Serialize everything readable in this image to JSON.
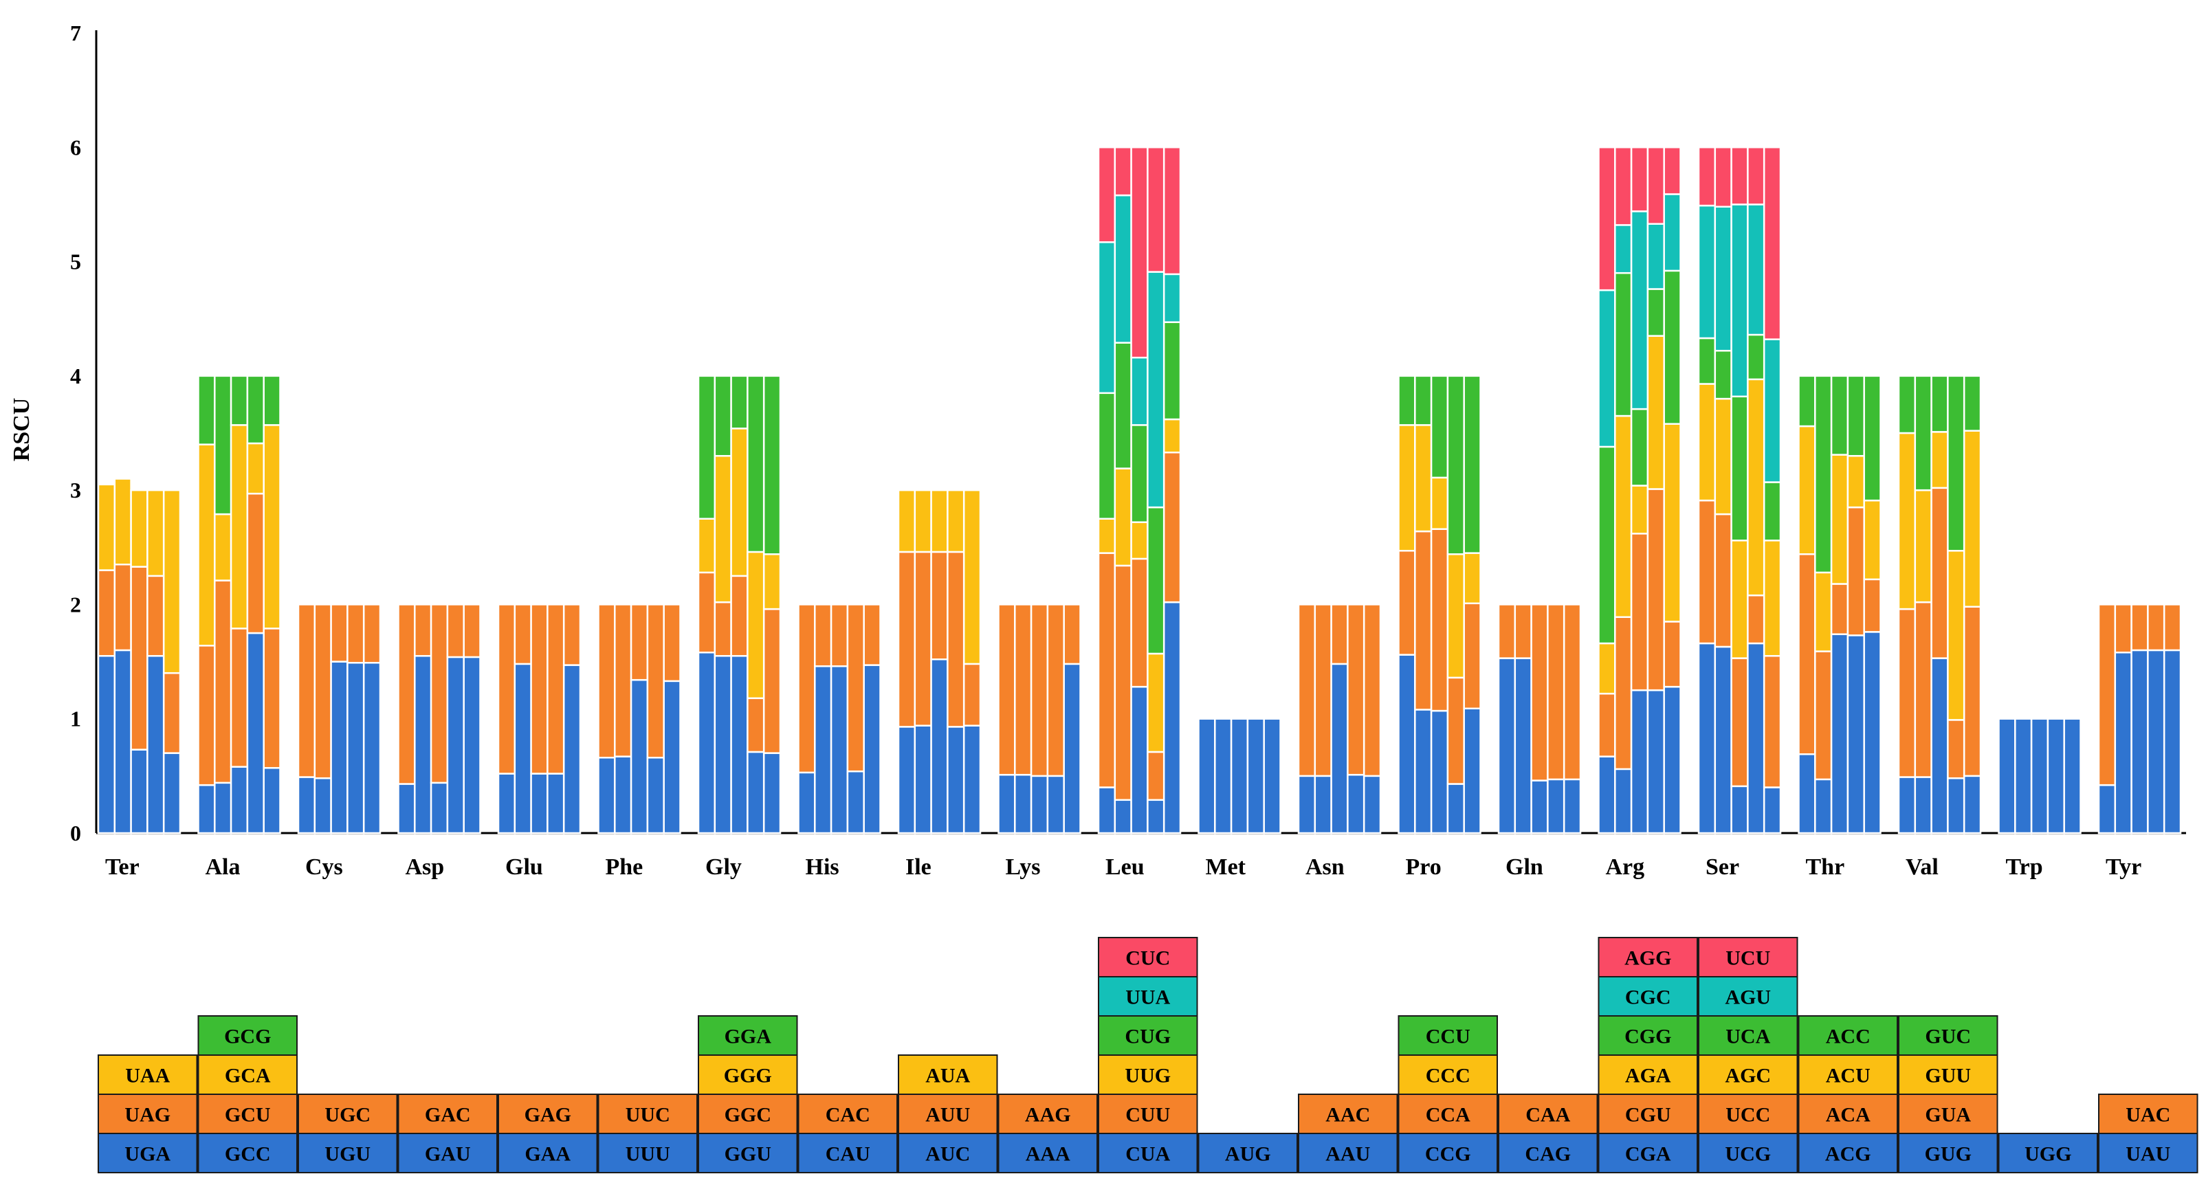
{
  "chart_data": {
    "type": "bar",
    "subtype": "stacked",
    "ylabel": "RSCU",
    "xlabel": "",
    "ylim": [
      0,
      7
    ],
    "yticks": [
      0,
      1,
      2,
      3,
      4,
      5,
      6,
      7
    ],
    "grid": false,
    "legend": "codon table below chart",
    "colors": [
      "#2f74d0",
      "#f5822a",
      "#fbbf12",
      "#3cbd33",
      "#14c0b8",
      "#fa4a65"
    ],
    "amino_acids": [
      {
        "name": "Ter",
        "codons": [
          "UGA",
          "UAG",
          "UAA"
        ],
        "values": [
          [
            1.55,
            0.75,
            0.75
          ],
          [
            1.6,
            0.75,
            0.75
          ],
          [
            0.73,
            1.6,
            0.67
          ],
          [
            1.55,
            0.7,
            0.75
          ],
          [
            0.7,
            0.7,
            1.6
          ]
        ]
      },
      {
        "name": "Ala",
        "codons": [
          "GCC",
          "GCU",
          "GCA",
          "GCG"
        ],
        "values": [
          [
            0.42,
            1.22,
            1.76,
            0.6
          ],
          [
            0.44,
            1.77,
            0.58,
            1.21
          ],
          [
            0.58,
            1.21,
            1.78,
            0.43
          ],
          [
            1.75,
            1.22,
            0.44,
            0.59
          ],
          [
            0.57,
            1.22,
            1.78,
            0.43
          ]
        ]
      },
      {
        "name": "Cys",
        "codons": [
          "UGU",
          "UGC"
        ],
        "values": [
          [
            0.49,
            1.51
          ],
          [
            0.48,
            1.52
          ],
          [
            1.5,
            0.5
          ],
          [
            1.49,
            0.51
          ],
          [
            1.49,
            0.51
          ]
        ]
      },
      {
        "name": "Asp",
        "codons": [
          "GAU",
          "GAC"
        ],
        "values": [
          [
            0.43,
            1.57
          ],
          [
            1.55,
            0.45
          ],
          [
            0.44,
            1.56
          ],
          [
            1.54,
            0.46
          ],
          [
            1.54,
            0.46
          ]
        ]
      },
      {
        "name": "Glu",
        "codons": [
          "GAA",
          "GAG"
        ],
        "values": [
          [
            0.52,
            1.48
          ],
          [
            1.48,
            0.52
          ],
          [
            0.52,
            1.48
          ],
          [
            0.52,
            1.48
          ],
          [
            1.47,
            0.53
          ]
        ]
      },
      {
        "name": "Phe",
        "codons": [
          "UUU",
          "UUC"
        ],
        "values": [
          [
            0.66,
            1.34
          ],
          [
            0.67,
            1.33
          ],
          [
            1.34,
            0.66
          ],
          [
            0.66,
            1.34
          ],
          [
            1.33,
            0.67
          ]
        ]
      },
      {
        "name": "Gly",
        "codons": [
          "GGU",
          "GGC",
          "GGG",
          "GGA"
        ],
        "values": [
          [
            1.58,
            0.7,
            0.47,
            1.25
          ],
          [
            1.55,
            0.47,
            1.28,
            0.7
          ],
          [
            1.55,
            0.7,
            1.29,
            0.46
          ],
          [
            0.71,
            0.47,
            1.28,
            1.54
          ],
          [
            0.7,
            1.26,
            0.48,
            1.56
          ]
        ]
      },
      {
        "name": "His",
        "codons": [
          "CAU",
          "CAC"
        ],
        "values": [
          [
            0.53,
            1.47
          ],
          [
            1.46,
            0.54
          ],
          [
            1.46,
            0.54
          ],
          [
            0.54,
            1.46
          ],
          [
            1.47,
            0.53
          ]
        ]
      },
      {
        "name": "Ile",
        "codons": [
          "AUC",
          "AUU",
          "AUA"
        ],
        "values": [
          [
            0.93,
            1.53,
            0.54
          ],
          [
            0.94,
            1.52,
            0.54
          ],
          [
            1.52,
            0.94,
            0.54
          ],
          [
            0.93,
            1.53,
            0.54
          ],
          [
            0.94,
            0.54,
            1.52
          ]
        ]
      },
      {
        "name": "Lys",
        "codons": [
          "AAA",
          "AAG"
        ],
        "values": [
          [
            0.51,
            1.49
          ],
          [
            0.51,
            1.49
          ],
          [
            0.5,
            1.5
          ],
          [
            0.5,
            1.5
          ],
          [
            1.48,
            0.52
          ]
        ]
      },
      {
        "name": "Leu",
        "codons": [
          "CUA",
          "CUU",
          "UUG",
          "CUG",
          "UUA",
          "CUC"
        ],
        "values": [
          [
            0.4,
            2.05,
            0.3,
            1.1,
            1.32,
            0.83
          ],
          [
            0.29,
            2.05,
            0.85,
            1.1,
            1.29,
            0.42
          ],
          [
            1.28,
            1.12,
            0.32,
            0.85,
            0.59,
            1.84
          ],
          [
            0.29,
            0.42,
            0.86,
            1.28,
            2.06,
            1.09
          ],
          [
            2.02,
            1.31,
            0.29,
            0.85,
            0.42,
            1.11
          ]
        ]
      },
      {
        "name": "Met",
        "codons": [
          "AUG"
        ],
        "values": [
          [
            1
          ],
          [
            1
          ],
          [
            1
          ],
          [
            1
          ],
          [
            1
          ]
        ]
      },
      {
        "name": "Asn",
        "codons": [
          "AAU",
          "AAC"
        ],
        "values": [
          [
            0.5,
            1.5
          ],
          [
            0.5,
            1.5
          ],
          [
            1.48,
            0.52
          ],
          [
            0.51,
            1.49
          ],
          [
            0.5,
            1.5
          ]
        ]
      },
      {
        "name": "Pro",
        "codons": [
          "CCG",
          "CCA",
          "CCC",
          "CCU"
        ],
        "values": [
          [
            1.56,
            0.91,
            1.1,
            0.43
          ],
          [
            1.08,
            1.56,
            0.93,
            0.43
          ],
          [
            1.07,
            1.59,
            0.45,
            0.89
          ],
          [
            0.43,
            0.93,
            1.08,
            1.56
          ],
          [
            1.09,
            0.92,
            0.44,
            1.55
          ]
        ]
      },
      {
        "name": "Gln",
        "codons": [
          "CAG",
          "CAA"
        ],
        "values": [
          [
            1.53,
            0.47
          ],
          [
            1.53,
            0.47
          ],
          [
            0.46,
            1.54
          ],
          [
            0.47,
            1.53
          ],
          [
            0.47,
            1.53
          ]
        ]
      },
      {
        "name": "Arg",
        "codons": [
          "CGA",
          "CGU",
          "AGA",
          "CGG",
          "CGC",
          "AGG"
        ],
        "values": [
          [
            0.67,
            0.55,
            0.44,
            1.72,
            1.37,
            1.25
          ],
          [
            0.56,
            1.33,
            1.76,
            1.25,
            0.42,
            0.68
          ],
          [
            1.25,
            1.37,
            0.42,
            0.67,
            1.73,
            0.56
          ],
          [
            1.25,
            1.76,
            1.34,
            0.41,
            0.57,
            0.67
          ],
          [
            1.28,
            0.57,
            1.73,
            1.34,
            0.67,
            0.41
          ]
        ]
      },
      {
        "name": "Ser",
        "codons": [
          "UCG",
          "UCC",
          "AGC",
          "UCA",
          "AGU",
          "UCU"
        ],
        "values": [
          [
            1.66,
            1.25,
            1.02,
            0.4,
            1.16,
            0.51
          ],
          [
            1.63,
            1.16,
            1.01,
            0.42,
            1.26,
            0.52
          ],
          [
            0.41,
            1.12,
            1.03,
            1.26,
            1.68,
            0.5
          ],
          [
            1.66,
            0.42,
            1.89,
            0.39,
            1.14,
            0.5
          ],
          [
            0.4,
            1.15,
            1.01,
            0.51,
            1.25,
            1.68
          ]
        ]
      },
      {
        "name": "Thr",
        "codons": [
          "ACG",
          "ACA",
          "ACU",
          "ACC"
        ],
        "values": [
          [
            0.69,
            1.75,
            1.12,
            0.44
          ],
          [
            0.47,
            1.12,
            0.69,
            1.72
          ],
          [
            1.74,
            0.44,
            1.13,
            0.69
          ],
          [
            1.73,
            1.12,
            0.45,
            0.7
          ],
          [
            1.76,
            0.46,
            0.69,
            1.09
          ]
        ]
      },
      {
        "name": "Val",
        "codons": [
          "GUG",
          "GUA",
          "GUU",
          "GUC"
        ],
        "values": [
          [
            0.49,
            1.47,
            1.54,
            0.5
          ],
          [
            0.49,
            1.53,
            0.98,
            1.0
          ],
          [
            1.53,
            1.49,
            0.49,
            0.49
          ],
          [
            0.48,
            0.51,
            1.48,
            1.53
          ],
          [
            0.5,
            1.48,
            1.54,
            0.48
          ]
        ]
      },
      {
        "name": "Trp",
        "codons": [
          "UGG"
        ],
        "values": [
          [
            1
          ],
          [
            1
          ],
          [
            1
          ],
          [
            1
          ],
          [
            1
          ]
        ]
      },
      {
        "name": "Tyr",
        "codons": [
          "UAU",
          "UAC"
        ],
        "values": [
          [
            0.42,
            1.58
          ],
          [
            1.58,
            0.42
          ],
          [
            1.6,
            0.4
          ],
          [
            1.6,
            0.4
          ],
          [
            1.6,
            0.4
          ]
        ]
      }
    ]
  }
}
